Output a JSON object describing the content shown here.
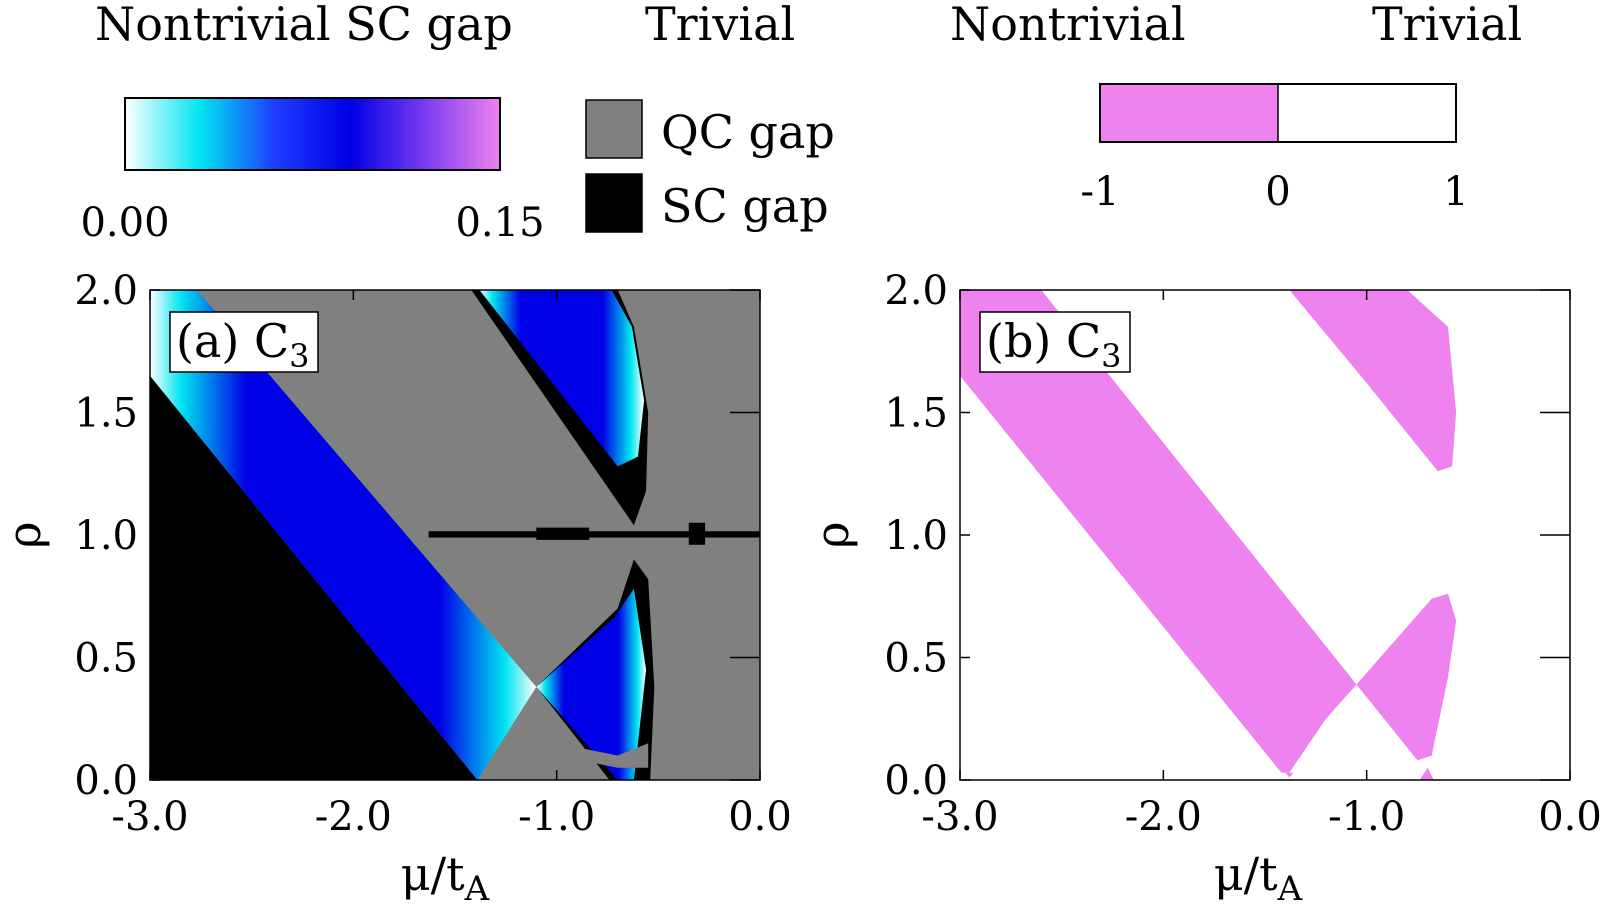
{
  "legend": {
    "gap_colorbar": {
      "header_left": "Nontrivial SC gap",
      "header_right": "Trivial",
      "min_label": "0.00",
      "max_label": "0.15",
      "gradient_colors": [
        "#ffffff",
        "#00e5f0",
        "#1e3cff",
        "#0000e6",
        "#7a3cf0",
        "#ee82ee"
      ]
    },
    "swatches": [
      {
        "label": "QC gap",
        "color": "#808080"
      },
      {
        "label": "SC gap",
        "color": "#000000"
      }
    ],
    "sign_colorbar": {
      "header_left": "Nontrivial",
      "header_right": "Trivial",
      "ticks": [
        "-1",
        "0",
        "1"
      ],
      "nontrivial_color": "#ee82ee",
      "trivial_color": "#ffffff"
    }
  },
  "chart_data": [
    {
      "type": "heatmap",
      "panel_label": "(a) C",
      "panel_subscript": "3",
      "xlabel_main": "μ/t",
      "xlabel_sub": "A",
      "ylabel": "ρ",
      "xlim": [
        -3.0,
        0.0
      ],
      "ylim": [
        0.0,
        2.0
      ],
      "xticks": [
        "-3.0",
        "-2.0",
        "-1.0",
        "0.0"
      ],
      "xtick_values": [
        -3.0,
        -2.0,
        -1.0,
        0.0
      ],
      "yticks": [
        "0.0",
        "0.5",
        "1.0",
        "1.5",
        "2.0"
      ],
      "ytick_values": [
        0.0,
        0.5,
        1.0,
        1.5,
        2.0
      ],
      "background_color": "#808080",
      "regions": [
        {
          "kind": "SC gap",
          "color": "#000000",
          "points": [
            [
              -3.0,
              1.65
            ],
            [
              -1.39,
              0.0
            ],
            [
              -3.0,
              0.0
            ]
          ]
        },
        {
          "kind": "Nontrivial SC gap",
          "fill": "gradient",
          "points": [
            [
              -3.0,
              1.65
            ],
            [
              -3.0,
              2.0
            ],
            [
              -2.77,
              2.0
            ],
            [
              -1.1,
              0.38
            ],
            [
              -1.39,
              0.0
            ]
          ]
        },
        {
          "kind": "SC gap",
          "color": "#000000",
          "points": [
            [
              -1.42,
              2.0
            ],
            [
              -0.62,
              1.04
            ],
            [
              -0.56,
              1.18
            ],
            [
              -0.55,
              1.5
            ],
            [
              -0.62,
              1.85
            ],
            [
              -0.7,
              2.0
            ]
          ]
        },
        {
          "kind": "Nontrivial SC gap",
          "fill": "gradient",
          "points": [
            [
              -1.38,
              2.0
            ],
            [
              -0.7,
              1.28
            ],
            [
              -0.6,
              1.32
            ],
            [
              -0.57,
              1.55
            ],
            [
              -0.63,
              1.85
            ],
            [
              -0.73,
              2.0
            ]
          ]
        },
        {
          "kind": "SC gap",
          "color": "#000000",
          "points": [
            [
              -1.1,
              0.38
            ],
            [
              -0.74,
              0.0
            ],
            [
              -0.54,
              0.0
            ],
            [
              -0.52,
              0.38
            ],
            [
              -0.55,
              0.82
            ],
            [
              -0.62,
              0.9
            ],
            [
              -0.7,
              0.7
            ]
          ]
        },
        {
          "kind": "Nontrivial SC gap",
          "fill": "gradient",
          "points": [
            [
              -1.1,
              0.38
            ],
            [
              -0.7,
              0.0
            ],
            [
              -0.62,
              0.0
            ],
            [
              -0.56,
              0.45
            ],
            [
              -0.62,
              0.78
            ],
            [
              -0.72,
              0.66
            ]
          ]
        },
        {
          "kind": "QC gap",
          "color": "#808080",
          "points": [
            [
              -1.0,
              0.15
            ],
            [
              -0.7,
              0.1
            ],
            [
              -0.55,
              0.15
            ],
            [
              -0.55,
              0.05
            ],
            [
              -0.7,
              0.05
            ],
            [
              -1.0,
              0.1
            ]
          ]
        },
        {
          "kind": "SC gap",
          "color": "#000000",
          "points": [
            [
              -1.63,
              1.015
            ],
            [
              0.0,
              1.015
            ],
            [
              0.0,
              0.99
            ],
            [
              -1.63,
              0.99
            ]
          ]
        },
        {
          "kind": "SC gap",
          "color": "#000000",
          "points": [
            [
              -1.1,
              1.03
            ],
            [
              -0.84,
              1.03
            ],
            [
              -0.84,
              0.98
            ],
            [
              -1.1,
              0.98
            ]
          ]
        },
        {
          "kind": "SC gap",
          "color": "#000000",
          "points": [
            [
              -0.35,
              1.05
            ],
            [
              -0.27,
              1.05
            ],
            [
              -0.27,
              0.96
            ],
            [
              -0.35,
              0.96
            ]
          ]
        }
      ]
    },
    {
      "type": "heatmap",
      "panel_label": "(b) C",
      "panel_subscript": "3",
      "xlabel_main": "μ/t",
      "xlabel_sub": "A",
      "ylabel": "ρ",
      "xlim": [
        -3.0,
        0.0
      ],
      "ylim": [
        0.0,
        2.0
      ],
      "xticks": [
        "-3.0",
        "-2.0",
        "-1.0",
        "0.0"
      ],
      "xtick_values": [
        -3.0,
        -2.0,
        -1.0,
        0.0
      ],
      "yticks": [
        "0.0",
        "0.5",
        "1.0",
        "1.5",
        "2.0"
      ],
      "ytick_values": [
        0.0,
        0.5,
        1.0,
        1.5,
        2.0
      ],
      "background_color": "#ffffff",
      "regions": [
        {
          "kind": "Nontrivial",
          "color": "#ee82ee",
          "points": [
            [
              -3.0,
              1.65
            ],
            [
              -3.0,
              2.0
            ],
            [
              -2.6,
              2.0
            ],
            [
              -1.05,
              0.39
            ],
            [
              -1.2,
              0.25
            ],
            [
              -1.38,
              0.03
            ],
            [
              -1.42,
              0.03
            ]
          ]
        },
        {
          "kind": "Nontrivial",
          "color": "#ee82ee",
          "points": [
            [
              -1.38,
              2.0
            ],
            [
              -1.0,
              1.62
            ],
            [
              -0.65,
              1.26
            ],
            [
              -0.58,
              1.28
            ],
            [
              -0.56,
              1.5
            ],
            [
              -0.6,
              1.85
            ],
            [
              -0.8,
              2.0
            ]
          ]
        },
        {
          "kind": "Nontrivial",
          "color": "#ee82ee",
          "points": [
            [
              -1.05,
              0.39
            ],
            [
              -0.75,
              0.08
            ],
            [
              -0.68,
              0.1
            ],
            [
              -0.6,
              0.42
            ],
            [
              -0.56,
              0.65
            ],
            [
              -0.6,
              0.76
            ],
            [
              -0.68,
              0.74
            ]
          ]
        },
        {
          "kind": "Nontrivial",
          "color": "#ee82ee",
          "points": [
            [
              -0.74,
              0.0
            ],
            [
              -0.67,
              0.0
            ],
            [
              -0.7,
              0.05
            ]
          ]
        },
        {
          "kind": "Nontrivial",
          "color": "#ee82ee",
          "points": [
            [
              -1.4,
              0.03
            ],
            [
              -1.36,
              0.03
            ],
            [
              -1.38,
              0.01
            ]
          ]
        }
      ]
    }
  ]
}
